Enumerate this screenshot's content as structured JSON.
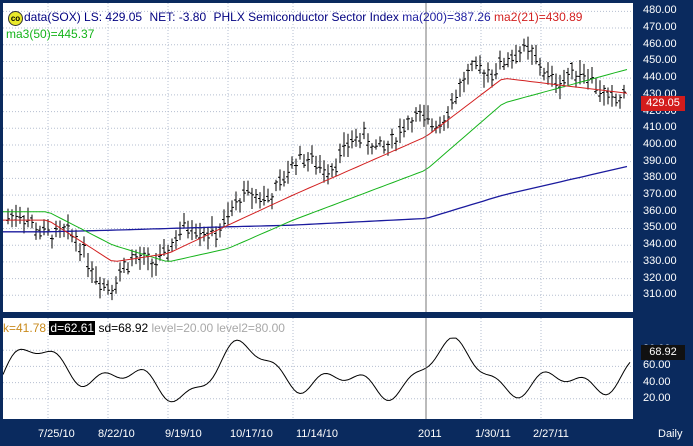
{
  "header": {
    "symbol_icon": "co",
    "ticker_text": "data(SOX)",
    "last_label": "LS: 429.05",
    "net_label": "NET: -3.80",
    "index_name": "PHLX Semiconductor Sector Index",
    "ma200_label": "ma(200)=387.26",
    "ma21_label": "ma2(21)=430.89",
    "ma50_label": "ma3(50)=445.37"
  },
  "oscillator": {
    "k_label": "k=41.78",
    "d_label": "d=62.61",
    "sd_label": "sd=68.92",
    "level1_label": "level=20.00",
    "level2_label": "level2=80.00",
    "current_value": "68.92",
    "axis_ticks": [
      "80.00",
      "60.00",
      "40.00",
      "20.00"
    ]
  },
  "price_tag": "429.05",
  "timeframe": "Daily",
  "price_axis_ticks": [
    "480.00",
    "470.00",
    "460.00",
    "450.00",
    "440.00",
    "430.00",
    "420.00",
    "410.00",
    "400.00",
    "390.00",
    "380.00",
    "370.00",
    "360.00",
    "350.00",
    "340.00",
    "330.00",
    "320.00",
    "310.00"
  ],
  "date_axis": [
    "7/25/10",
    "8/22/10",
    "9/19/10",
    "10/17/10",
    "11/14/10",
    "2011",
    "1/30/11",
    "2/27/11"
  ],
  "colors": {
    "background": "#0a2a5e",
    "pane": "#ffffff",
    "bars": "#000000",
    "ma200": "#1b1b9e",
    "ma21": "#d21f1f",
    "ma50": "#15b31a",
    "header_text": "#000080",
    "k_color": "#c98a1c",
    "level_color": "#a8a8a8",
    "price_tag": "#d31c1c"
  },
  "chart_data": [
    {
      "type": "line",
      "title": "PHLX Semiconductor Sector Index",
      "xlabel": "",
      "ylabel": "",
      "ylim": [
        300,
        485
      ],
      "grid": true,
      "x": [
        "7/25/10",
        "8/22/10",
        "9/19/10",
        "10/17/10",
        "11/14/10",
        "2011",
        "1/30/11",
        "2/27/11"
      ],
      "series": [
        {
          "name": "data(SOX)",
          "values": [
            353,
            318,
            340,
            357,
            385,
            413,
            455,
            429.05
          ]
        },
        {
          "name": "ma(200)",
          "values": [
            348,
            349,
            350,
            351,
            352,
            356,
            370,
            387.26
          ]
        },
        {
          "name": "ma2(21)",
          "values": [
            355,
            330,
            335,
            352,
            370,
            405,
            440,
            430.89
          ]
        },
        {
          "name": "ma3(50)",
          "values": [
            360,
            340,
            330,
            338,
            355,
            385,
            425,
            445.37
          ]
        }
      ]
    },
    {
      "type": "line",
      "title": "",
      "xlabel": "",
      "ylabel": "",
      "ylim": [
        0,
        100
      ],
      "grid": true,
      "x": [
        "7/25/10",
        "8/22/10",
        "9/19/10",
        "10/17/10",
        "11/14/10",
        "2011",
        "1/30/11",
        "2/27/11"
      ],
      "series": [
        {
          "name": "sd",
          "values": [
            70,
            20,
            85,
            65,
            80,
            45,
            80,
            68.92
          ]
        }
      ]
    }
  ]
}
